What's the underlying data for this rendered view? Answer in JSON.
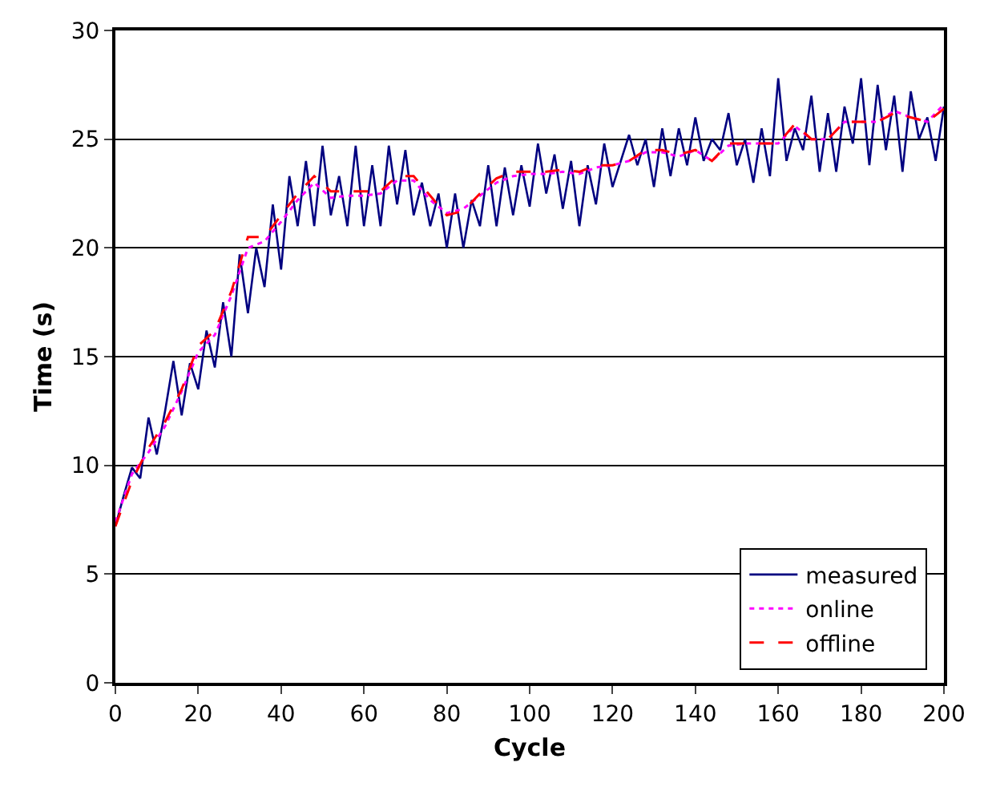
{
  "chart_data": {
    "type": "line",
    "xlabel": "Cycle",
    "ylabel": "Time (s)",
    "xlim": [
      0,
      200
    ],
    "xticks": [
      0,
      20,
      40,
      60,
      80,
      100,
      120,
      140,
      160,
      180,
      200
    ],
    "ylim": [
      0,
      30
    ],
    "yticks": [
      0,
      5,
      10,
      15,
      20,
      25,
      30
    ],
    "grid": "y",
    "legend": "bottom right",
    "marker": "none",
    "series": [
      {
        "name": "measured",
        "color": "#000080",
        "line_style": "solid",
        "x": [
          0,
          2,
          4,
          6,
          8,
          10,
          12,
          14,
          16,
          18,
          20,
          22,
          24,
          26,
          28,
          30,
          32,
          34,
          36,
          38,
          40,
          42,
          44,
          46,
          48,
          50,
          52,
          54,
          56,
          58,
          60,
          62,
          64,
          66,
          68,
          70,
          72,
          74,
          76,
          78,
          80,
          82,
          84,
          86,
          88,
          90,
          92,
          94,
          96,
          98,
          100,
          102,
          104,
          106,
          108,
          110,
          112,
          114,
          116,
          118,
          120,
          122,
          124,
          126,
          128,
          130,
          132,
          134,
          136,
          138,
          140,
          142,
          144,
          146,
          148,
          150,
          152,
          154,
          156,
          158,
          160,
          162,
          164,
          166,
          168,
          170,
          172,
          174,
          176,
          178,
          180,
          182,
          184,
          186,
          188,
          190,
          192,
          194,
          196,
          198,
          200
        ],
        "values": [
          7.2,
          8.6,
          9.9,
          9.4,
          12.2,
          10.5,
          12.5,
          14.8,
          12.3,
          14.7,
          13.5,
          16.2,
          14.5,
          17.5,
          15.0,
          19.7,
          17.0,
          20.0,
          18.2,
          22.0,
          19.0,
          23.3,
          21.0,
          24.0,
          21.0,
          24.7,
          21.5,
          23.3,
          21.0,
          24.7,
          21.0,
          23.8,
          21.0,
          24.7,
          22.0,
          24.5,
          21.5,
          23.0,
          21.0,
          22.5,
          20.0,
          22.5,
          20.0,
          22.2,
          21.0,
          23.8,
          21.0,
          23.7,
          21.5,
          23.8,
          21.9,
          24.8,
          22.5,
          24.3,
          21.8,
          24.0,
          21.0,
          23.8,
          22.0,
          24.8,
          22.8,
          24.0,
          25.2,
          23.8,
          25.0,
          22.8,
          25.5,
          23.3,
          25.5,
          23.8,
          26.0,
          24.0,
          25.0,
          24.5,
          26.2,
          23.8,
          25.0,
          23.0,
          25.5,
          23.3,
          27.8,
          24.0,
          25.5,
          24.5,
          27.0,
          23.5,
          26.2,
          23.5,
          26.5,
          24.8,
          27.8,
          23.8,
          27.5,
          24.5,
          27.0,
          23.5,
          27.2,
          25.0,
          26.0,
          24.0,
          26.5
        ]
      },
      {
        "name": "online",
        "color": "#ff00ff",
        "line_style": "dotted",
        "x": [
          0,
          4,
          8,
          12,
          16,
          20,
          24,
          28,
          32,
          36,
          40,
          44,
          48,
          52,
          56,
          60,
          64,
          68,
          72,
          76,
          80,
          84,
          88,
          92,
          96,
          100,
          104,
          108,
          112,
          116,
          120,
          124,
          128,
          132,
          136,
          140,
          144,
          148,
          152,
          156,
          160,
          164,
          168,
          172,
          176,
          180,
          184,
          188,
          192,
          196,
          200
        ],
        "values": [
          7.4,
          9.6,
          10.6,
          11.8,
          13.4,
          15.2,
          16.0,
          17.8,
          20.0,
          20.3,
          21.2,
          22.2,
          23.0,
          22.3,
          22.4,
          22.4,
          22.5,
          23.1,
          23.1,
          22.2,
          21.6,
          21.8,
          22.4,
          23.0,
          23.3,
          23.4,
          23.4,
          23.5,
          23.4,
          23.7,
          23.8,
          24.0,
          24.4,
          24.4,
          24.2,
          24.5,
          24.0,
          24.7,
          24.8,
          24.8,
          24.8,
          25.6,
          25.0,
          25.0,
          25.8,
          25.8,
          25.8,
          26.3,
          26.0,
          25.8,
          26.6
        ]
      },
      {
        "name": "offline",
        "color": "#ff0000",
        "line_style": "dashed",
        "x": [
          0,
          4,
          8,
          12,
          16,
          20,
          24,
          28,
          32,
          36,
          40,
          44,
          48,
          52,
          56,
          60,
          64,
          68,
          72,
          76,
          80,
          84,
          88,
          92,
          96,
          100,
          104,
          108,
          112,
          116,
          120,
          124,
          128,
          132,
          136,
          140,
          144,
          148,
          152,
          156,
          160,
          164,
          168,
          172,
          176,
          180,
          184,
          188,
          192,
          196,
          200
        ],
        "values": [
          7.2,
          9.3,
          10.8,
          12.0,
          13.5,
          15.5,
          16.2,
          18.0,
          20.5,
          20.5,
          21.5,
          22.5,
          23.3,
          22.6,
          22.6,
          22.6,
          22.6,
          23.3,
          23.3,
          22.4,
          21.5,
          21.7,
          22.5,
          23.2,
          23.5,
          23.5,
          23.5,
          23.6,
          23.5,
          23.8,
          23.8,
          24.0,
          24.5,
          24.5,
          24.3,
          24.5,
          24.0,
          24.8,
          24.8,
          24.8,
          24.8,
          25.7,
          25.0,
          25.0,
          25.8,
          25.8,
          25.8,
          26.2,
          26.0,
          25.8,
          26.4
        ]
      }
    ]
  }
}
